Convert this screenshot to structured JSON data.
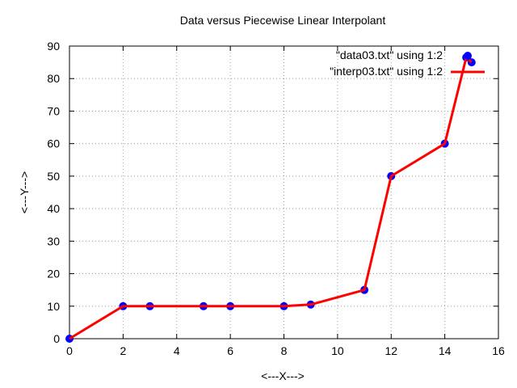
{
  "chart_data": {
    "type": "line",
    "title": "Data versus Piecewise Linear Interpolant",
    "xlabel": "<---X--->",
    "ylabel": "<---Y--->",
    "xlim": [
      0,
      16
    ],
    "ylim": [
      0,
      90
    ],
    "xticks": [
      0,
      2,
      4,
      6,
      8,
      10,
      12,
      14,
      16
    ],
    "yticks": [
      0,
      10,
      20,
      30,
      40,
      50,
      60,
      70,
      80,
      90
    ],
    "grid": true,
    "legend_position": "top-right",
    "series": [
      {
        "name": "\"data03.txt\" using 1:2",
        "kind": "points",
        "color": "#0000ff",
        "x": [
          0,
          2,
          3,
          5,
          6,
          8,
          9,
          11,
          12,
          14,
          14.8,
          15
        ],
        "y": [
          0,
          10,
          10,
          10,
          10,
          10,
          10.5,
          15,
          50,
          60,
          86.5,
          85
        ]
      },
      {
        "name": "\"interp03.txt\" using 1:2",
        "kind": "line",
        "color": "#ff0000",
        "x": [
          0,
          2,
          3,
          5,
          6,
          8,
          9,
          11,
          12,
          14,
          14.8,
          15
        ],
        "y": [
          0,
          10,
          10,
          10,
          10,
          10,
          10.5,
          15,
          50,
          60,
          86.5,
          85
        ]
      }
    ]
  }
}
